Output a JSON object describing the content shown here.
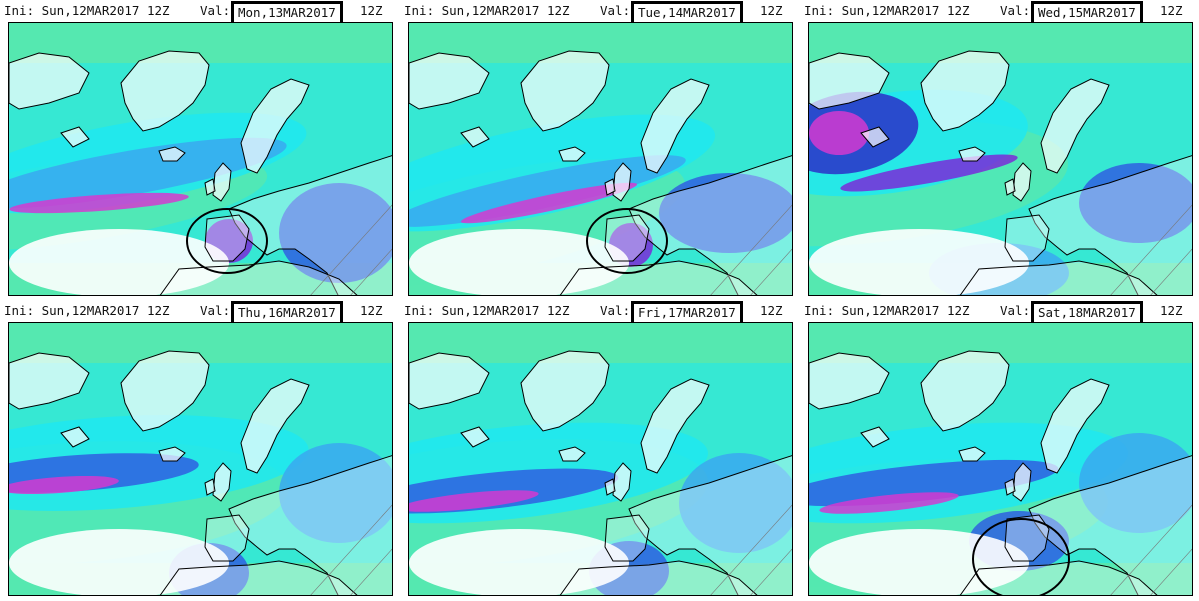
{
  "panels": [
    {
      "ini": "Ini: Sun,12MAR2017 12Z",
      "val_label": "Val:",
      "valid": "Mon,13MAR2017",
      "hour": "12Z",
      "circle": "iberia"
    },
    {
      "ini": "Ini: Sun,12MAR2017 12Z",
      "val_label": "Val:",
      "valid": "Tue,14MAR2017",
      "hour": "12Z",
      "circle": "iberia"
    },
    {
      "ini": "Ini: Sun,12MAR2017 12Z",
      "val_label": "Val:",
      "valid": "Wed,15MAR2017",
      "hour": "12Z",
      "circle": "none"
    },
    {
      "ini": "Ini: Sun,12MAR2017 12Z",
      "val_label": "Val:",
      "valid": "Thu,16MAR2017",
      "hour": "12Z",
      "circle": "none"
    },
    {
      "ini": "Ini: Sun,12MAR2017 12Z",
      "val_label": "Val:",
      "valid": "Fri,17MAR2017",
      "hour": "12Z",
      "circle": "none"
    },
    {
      "ini": "Ini: Sun,12MAR2017 12Z",
      "val_label": "Val:",
      "valid": "Sat,18MAR2017",
      "hour": "12Z",
      "circle": "iberia-wide"
    }
  ],
  "colors": {
    "land": "#ffffff",
    "low_green": "#55e8b0",
    "cyan": "#1ee8f0",
    "light_blue": "#3aa8f0",
    "blue": "#2f5fe0",
    "dark_blue": "#2a2fc8",
    "purple": "#7a2ad8",
    "magenta": "#d43ad0",
    "coast": "#000000"
  }
}
